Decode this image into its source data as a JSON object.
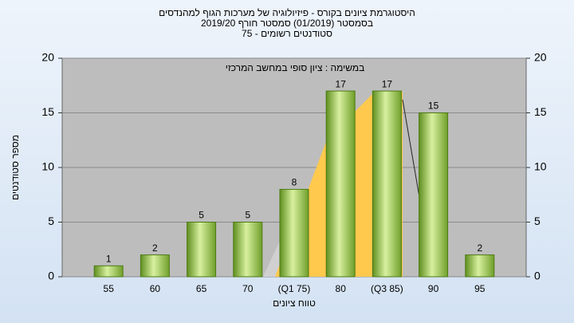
{
  "chart_data": {
    "type": "bar",
    "title": [
      "היסטוגרמת ציונים בקורס - פיזיולוגיה של מערכות הגוף למהנדסים",
      "בסמסטר  (01/2019)  סמסטר חורף 2019/20",
      "סטודנטים רשומים - 75"
    ],
    "subtitle": "במשימה : ציון סופי במחשב המרכזי",
    "x_label": "טווח ציונים",
    "y_label": "מספר סטודנטים",
    "categories": [
      "55",
      "60",
      "65",
      "70",
      "(Q1 75)",
      "80",
      "(Q3 85)",
      "90",
      "95"
    ],
    "values": [
      1,
      2,
      5,
      5,
      8,
      17,
      17,
      15,
      2
    ],
    "color": "#8fbf3f",
    "ylim": [
      0,
      20
    ],
    "yticks": [
      0,
      5,
      10,
      15,
      20
    ],
    "y2lim": [
      0,
      20
    ],
    "y2ticks": [
      0,
      5,
      10,
      15,
      20
    ],
    "grid": true
  }
}
